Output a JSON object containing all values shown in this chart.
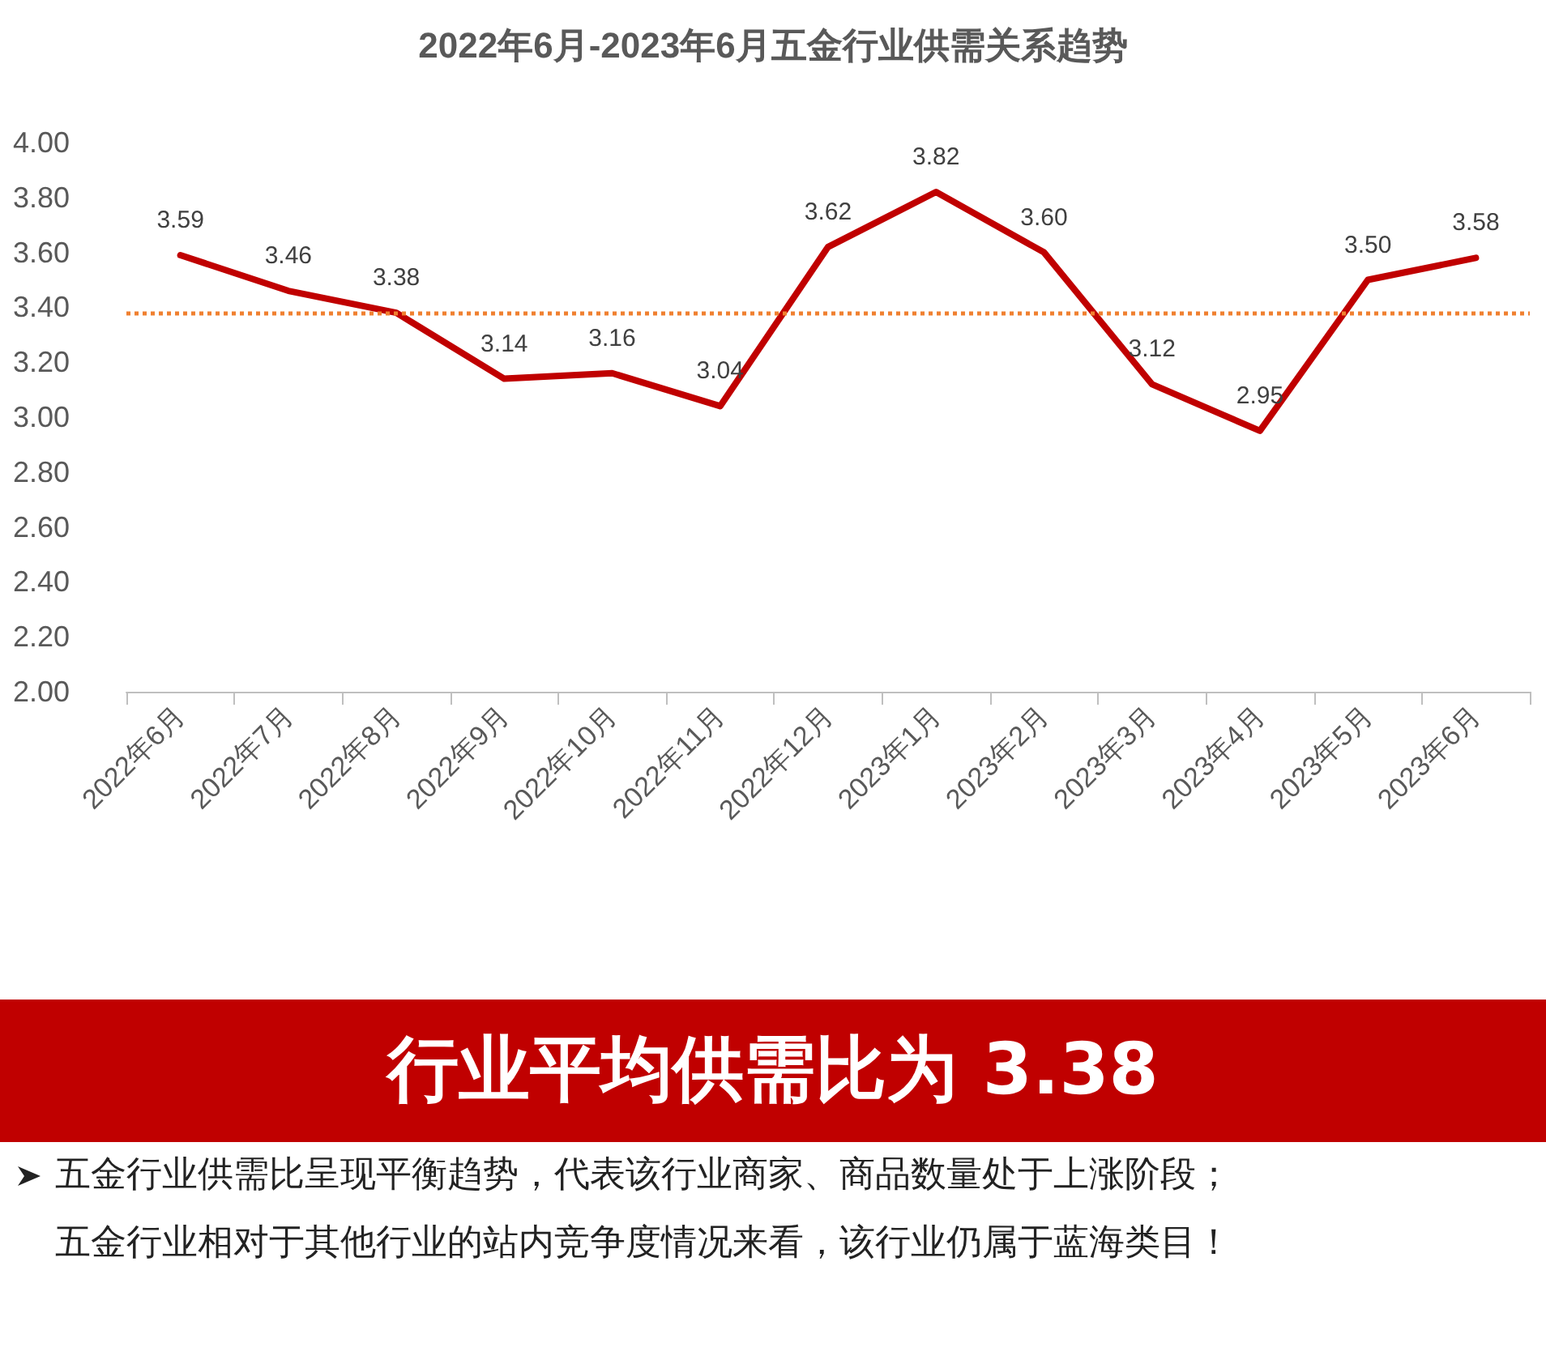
{
  "chart_data": {
    "type": "line",
    "title": "2022年6月-2023年6月五金行业供需关系趋势",
    "categories": [
      "2022年6月",
      "2022年7月",
      "2022年8月",
      "2022年9月",
      "2022年10月",
      "2022年11月",
      "2022年12月",
      "2023年1月",
      "2023年2月",
      "2023年3月",
      "2023年4月",
      "2023年5月",
      "2023年6月"
    ],
    "series": [
      {
        "color": "#c00000",
        "values": [
          3.59,
          3.46,
          3.38,
          3.14,
          3.16,
          3.04,
          3.62,
          3.82,
          3.6,
          3.12,
          2.95,
          3.5,
          3.58
        ],
        "value_labels": [
          "3.59",
          "3.46",
          "3.38",
          "3.14",
          "3.16",
          "3.04",
          "3.62",
          "3.82",
          "3.60",
          "3.12",
          "2.95",
          "3.50",
          "3.58"
        ]
      }
    ],
    "ylim": [
      2,
      4
    ],
    "yticks": [
      {
        "value": 2,
        "label": "2.00"
      },
      {
        "value": 2.2,
        "label": "2.20"
      },
      {
        "value": 2.4,
        "label": "2.40"
      },
      {
        "value": 2.6,
        "label": "2.60"
      },
      {
        "value": 2.8,
        "label": "2.80"
      },
      {
        "value": 3,
        "label": "3.00"
      },
      {
        "value": 3.2,
        "label": "3.20"
      },
      {
        "value": 3.4,
        "label": "3.40"
      },
      {
        "value": 3.6,
        "label": "3.60"
      },
      {
        "value": 3.8,
        "label": "3.80"
      },
      {
        "value": 4,
        "label": "4.00"
      }
    ],
    "ref_lines": [
      {
        "axis": "y",
        "value": 3.38,
        "color": "#f08030",
        "line_style": "dotted"
      }
    ],
    "grid": false,
    "marker": "none",
    "line_style": "solid",
    "annotations": [
      "行业平均供需比为 3.38",
      "五金行业供需比呈现平衡趋势，代表该行业商家、商品数量处于上涨阶段；",
      "五金行业相对于其他行业的站内竞争度情况来看，该行业仍属于蓝海类目！"
    ]
  }
}
